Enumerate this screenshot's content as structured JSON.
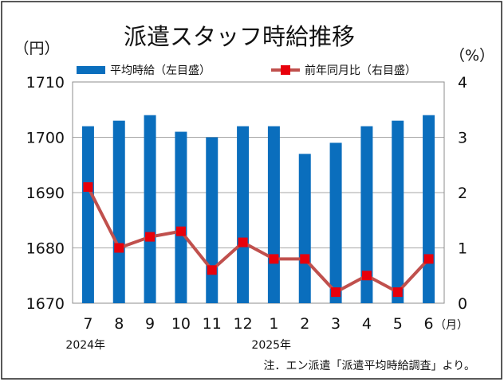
{
  "chart_data": {
    "type": "bar+line",
    "title": "派遣スタッフ時給推移",
    "categories": [
      "7",
      "8",
      "9",
      "10",
      "11",
      "12",
      "1",
      "2",
      "3",
      "4",
      "5",
      "6"
    ],
    "x_unit": "（月）",
    "year_labels": [
      {
        "label": "2024年",
        "index": 0
      },
      {
        "label": "2025年",
        "index": 6
      }
    ],
    "left_axis": {
      "unit": "（円）",
      "min": 1670,
      "max": 1710,
      "ticks": [
        "1670",
        "1680",
        "1690",
        "1700",
        "1710"
      ]
    },
    "right_axis": {
      "unit": "（%）",
      "min": 0,
      "max": 4,
      "ticks": [
        "0",
        "1",
        "2",
        "3",
        "4"
      ]
    },
    "series": [
      {
        "name": "平均時給（左目盛）",
        "type": "bar",
        "axis": "left",
        "color": "#0a6ebd",
        "values": [
          1702,
          1703,
          1704,
          1701,
          1700,
          1702,
          1702,
          1697,
          1699,
          1702,
          1703,
          1704
        ]
      },
      {
        "name": "前年同月比（右目盛）",
        "type": "line",
        "axis": "right",
        "color": "#c0504d",
        "marker_color": "#e8000b",
        "values": [
          2.1,
          1.0,
          1.2,
          1.3,
          0.6,
          1.1,
          0.8,
          0.8,
          0.2,
          0.5,
          0.2,
          0.8
        ]
      }
    ],
    "grid": true,
    "legend_position": "top"
  },
  "note": "注．エン派遣「派遣平均時給調査」より。"
}
